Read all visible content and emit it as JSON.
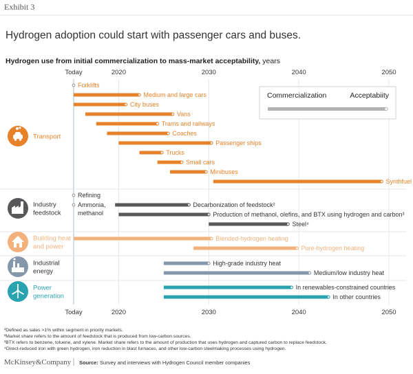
{
  "exhibit_label": "Exhibit 3",
  "headline": "Hydrogen adoption could start with passenger cars and buses.",
  "subtitle_bold": "Hydrogen use from initial commercialization to mass-market acceptability,",
  "subtitle_unit": "years",
  "legend": {
    "commercialization": "Commercialization",
    "acceptability": "Acceptabiity"
  },
  "footnotes": [
    "¹Defined as sales >1% within segment in priority markets.",
    "²Market share refers to the amount of feedstock that is produced from low-carbon sources.",
    "³BTX refers to benzene, toluene, and xylene. Market share refers to the amount of production that uses hydrogen and captured carbon to replace feedstock.",
    "⁴Direct-reduced iron with green hydrogen, iron reduction in blast furnaces, and other low-carbon steelmaking processes using hydrogen."
  ],
  "brand": "McKinsey&Company",
  "source_label": "Source:",
  "source_text": "Survey and interviews with Hydrogen Council member companies",
  "colors": {
    "transport": "#e8822a",
    "industry_feedstock": "#58585a",
    "building": "#f3b27c",
    "industrial_energy": "#8497ab",
    "power": "#2aa3b0",
    "legend_bar": "#b3b3b3",
    "today_line": "#b9c7d9"
  },
  "chart_data": {
    "type": "gantt",
    "x_ticks": [
      "Today",
      "2020",
      "2030",
      "2040",
      "2050"
    ],
    "x_tick_values": [
      2015,
      2020,
      2030,
      2040,
      2050
    ],
    "xlim": [
      2015,
      2050
    ],
    "groups": [
      {
        "key": "transport",
        "label": [
          "Transport"
        ],
        "icon": "car-icon",
        "rows": [
          {
            "label": "Forklifts",
            "start": 2015,
            "end": 2015
          },
          {
            "label": "Medium and large cars",
            "start": 2015,
            "end": 2022.3
          },
          {
            "label": "City buses",
            "start": 2015,
            "end": 2020.8
          },
          {
            "label": "Vans",
            "start": 2016.3,
            "end": 2026
          },
          {
            "label": "Trams and railways",
            "start": 2017.5,
            "end": 2024.3
          },
          {
            "label": "Coaches",
            "start": 2018.7,
            "end": 2025.5
          },
          {
            "label": "Passenger ships",
            "start": 2020,
            "end": 2030.3
          },
          {
            "label": "Trucks",
            "start": 2022.3,
            "end": 2024.8
          },
          {
            "label": "Small cars",
            "start": 2024.3,
            "end": 2027
          },
          {
            "label": "Minibuses",
            "start": 2025.7,
            "end": 2029.7
          },
          {
            "label": "Synthfuel for freight ships and airplanes",
            "start": 2030.5,
            "end": 2049.2
          }
        ]
      },
      {
        "key": "industry_feedstock",
        "label": [
          "Industry",
          "feedstock"
        ],
        "icon": "factory-icon",
        "rows": [
          {
            "label": "Refining",
            "start": 2015,
            "end": 2015
          },
          {
            "label": "Ammonia, methanol",
            "start": 2015,
            "end": 2015
          },
          {
            "label": "Decarbonization of feedstock²",
            "start": 2019.6,
            "end": 2027.8
          },
          {
            "label": "Production of methanol, olefins, and BTX using hydrogen and carbon³",
            "start": 2020,
            "end": 2030
          },
          {
            "label": "Steel⁴",
            "start": 2030,
            "end": 2038.8
          }
        ]
      },
      {
        "key": "building",
        "label": [
          "Building heat",
          "and power"
        ],
        "icon": "house-icon",
        "rows": [
          {
            "label": "Blended-hydrogen heating",
            "start": 2015,
            "end": 2030.3
          },
          {
            "label": "Pure-hydrogen heating",
            "start": 2028.3,
            "end": 2039.8
          }
        ]
      },
      {
        "key": "industrial_energy",
        "label": [
          "Industrial",
          "energy"
        ],
        "icon": "industrial-icon",
        "rows": [
          {
            "label": "High-grade industry heat",
            "start": 2025,
            "end": 2030
          },
          {
            "label": "Medium/low industry heat",
            "start": 2025,
            "end": 2041.2
          }
        ]
      },
      {
        "key": "power",
        "label": [
          "Power",
          "generation"
        ],
        "icon": "wind-icon",
        "rows": [
          {
            "label": "In renewables-constrained countries",
            "start": 2025,
            "end": 2039.2
          },
          {
            "label": "In other countries",
            "start": 2025,
            "end": 2043.3
          }
        ]
      }
    ]
  }
}
